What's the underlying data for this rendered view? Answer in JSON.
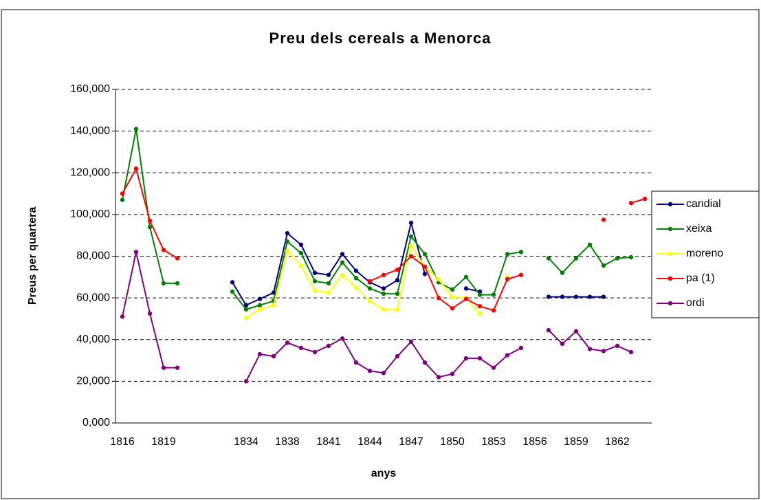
{
  "chart_data": {
    "type": "line",
    "title": "Preu dels cereals a Menorca",
    "xlabel": "anys",
    "ylabel": "Preus per quartera",
    "categories": [
      "1816",
      null,
      null,
      "1819",
      null,
      null,
      null,
      null,
      null,
      "1834",
      null,
      null,
      "1838",
      null,
      null,
      "1841",
      null,
      null,
      "1844",
      null,
      null,
      "1847",
      null,
      null,
      "1850",
      null,
      null,
      "1853",
      null,
      null,
      "1856",
      null,
      null,
      "1859",
      null,
      null,
      "1862",
      null,
      null
    ],
    "ylim": [
      0,
      160
    ],
    "yticks": [
      {
        "value": 0,
        "label": "0,000"
      },
      {
        "value": 20,
        "label": "20,000"
      },
      {
        "value": 40,
        "label": "40,000"
      },
      {
        "value": 60,
        "label": "60,000"
      },
      {
        "value": 80,
        "label": "80,000"
      },
      {
        "value": 100,
        "label": "100,000"
      },
      {
        "value": 120,
        "label": "120,000"
      },
      {
        "value": 140,
        "label": "140,000"
      },
      {
        "value": 160,
        "label": "160,000"
      }
    ],
    "grid": true,
    "legend": "right",
    "series": [
      {
        "name": "candial",
        "color": "#000080",
        "values": [
          null,
          null,
          null,
          null,
          null,
          null,
          null,
          null,
          67.5,
          56.5,
          59.5,
          62.5,
          91,
          85.5,
          72,
          71,
          81,
          73,
          67.5,
          64.5,
          68.5,
          96,
          71.5,
          null,
          null,
          64.5,
          63,
          null,
          null,
          null,
          null,
          60.5,
          60.5,
          60.5,
          60.5,
          60.5,
          null,
          null,
          null
        ]
      },
      {
        "name": "xeixa",
        "color": "#008000",
        "values": [
          107,
          141,
          94,
          67,
          67,
          null,
          null,
          null,
          63,
          54.5,
          56.5,
          58.5,
          87,
          81.5,
          68,
          67,
          77,
          69.5,
          64.5,
          62,
          62,
          89.5,
          81,
          67.5,
          64,
          70,
          61.5,
          61.5,
          81,
          82,
          null,
          79,
          72,
          79,
          85.5,
          75.5,
          79,
          79.5,
          null
        ]
      },
      {
        "name": "moreno",
        "color": "#ffff00",
        "values": [
          null,
          null,
          null,
          null,
          null,
          null,
          null,
          null,
          null,
          50.5,
          54.5,
          56.5,
          82.5,
          75.5,
          63.5,
          62.5,
          71,
          65,
          58.5,
          54.5,
          54.5,
          85,
          75,
          69,
          60.5,
          60,
          52.5,
          null,
          70,
          null,
          null,
          null,
          null,
          null,
          null,
          null,
          null,
          null,
          null
        ]
      },
      {
        "name": "pa (1)",
        "color": "#ff0000",
        "values": [
          110,
          122,
          97,
          83,
          79,
          null,
          null,
          null,
          null,
          null,
          null,
          null,
          null,
          null,
          null,
          null,
          null,
          null,
          68,
          71,
          73.5,
          80,
          75,
          60,
          55,
          59.5,
          56,
          54,
          69,
          71,
          null,
          null,
          null,
          null,
          null,
          97.5,
          null,
          105.5,
          107.5
        ]
      },
      {
        "name": "ordi",
        "color": "#800080",
        "values": [
          51,
          82,
          52.5,
          26.5,
          26.5,
          null,
          null,
          null,
          null,
          20,
          33,
          32,
          38.5,
          36,
          34,
          37,
          40.5,
          29,
          25,
          24,
          32,
          39,
          29,
          22,
          23.5,
          31,
          31,
          26.5,
          32.5,
          36,
          null,
          44.5,
          38,
          44,
          35.5,
          34.5,
          37,
          34,
          null
        ]
      }
    ]
  }
}
